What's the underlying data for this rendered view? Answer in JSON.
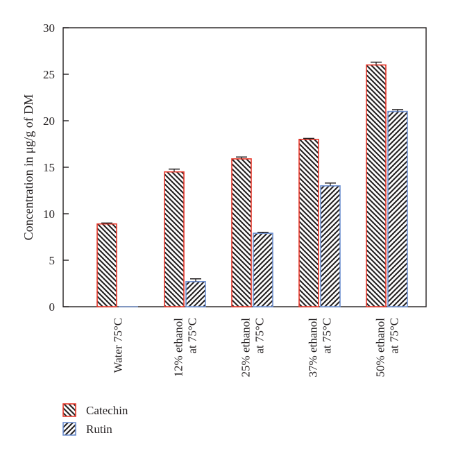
{
  "chart_data": {
    "type": "bar",
    "title": "",
    "xlabel": "",
    "ylabel": "Concentration in μg/g of DM",
    "ylim": [
      0,
      30
    ],
    "yticks": [
      0,
      5,
      10,
      15,
      20,
      25,
      30
    ],
    "grid": false,
    "legend_position": "bottom-left",
    "categories": [
      [
        "Water 75°C"
      ],
      [
        "12% ethanol",
        "at 75°C"
      ],
      [
        "25% ethanol",
        "at 75°C"
      ],
      [
        "37% ethanol",
        "at 75°C"
      ],
      [
        "50% ethanol",
        "at 75°C"
      ]
    ],
    "series": [
      {
        "name": "Catechin",
        "values": [
          8.9,
          14.5,
          15.9,
          18.0,
          26.0
        ],
        "errors": [
          0.1,
          0.3,
          0.2,
          0.1,
          0.3
        ],
        "border_color": "#e8392c",
        "hatch": "backslash"
      },
      {
        "name": "Rutin",
        "values": [
          0,
          2.7,
          7.9,
          13.0,
          21.0
        ],
        "errors": [
          0,
          0.3,
          0.1,
          0.3,
          0.2
        ],
        "border_color": "#6d8fd0",
        "hatch": "slash"
      }
    ]
  }
}
